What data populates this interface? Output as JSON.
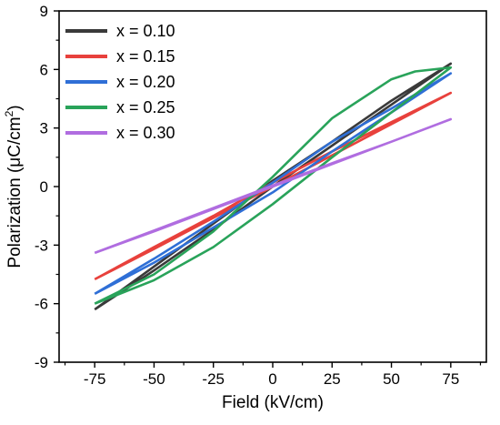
{
  "chart_data": {
    "type": "line",
    "title": "",
    "xlabel": "Field (kV/cm)",
    "ylabel_main": "Polarization (μC/cm",
    "ylabel_sup": "2",
    "ylabel_close": ")",
    "xlim": [
      -90,
      90
    ],
    "ylim": [
      -9,
      9
    ],
    "xticks": [
      -75,
      -50,
      -25,
      0,
      25,
      50,
      75
    ],
    "yticks": [
      -9,
      -6,
      -3,
      0,
      3,
      6,
      9
    ],
    "legend": {
      "position": "top-left"
    },
    "series": [
      {
        "name": "x = 0.10",
        "color": "#3a3a3a",
        "points": [
          [
            -75,
            -6.3
          ],
          [
            -50,
            -4.3
          ],
          [
            -25,
            -2.2
          ],
          [
            0,
            0.0
          ],
          [
            25,
            2.1
          ],
          [
            50,
            4.2
          ],
          [
            75,
            6.3
          ],
          [
            50,
            4.4
          ],
          [
            25,
            2.3
          ],
          [
            0,
            0.3
          ],
          [
            -25,
            -1.9
          ],
          [
            -50,
            -4.1
          ],
          [
            -75,
            -6.3
          ]
        ]
      },
      {
        "name": "x = 0.15",
        "color": "#e8413c",
        "points": [
          [
            -75,
            -4.75
          ],
          [
            -50,
            -3.2
          ],
          [
            -25,
            -1.6
          ],
          [
            0,
            0.0
          ],
          [
            25,
            1.6
          ],
          [
            50,
            3.2
          ],
          [
            75,
            4.8
          ],
          [
            50,
            3.3
          ],
          [
            25,
            1.8
          ],
          [
            0,
            0.2
          ],
          [
            -25,
            -1.5
          ],
          [
            -50,
            -3.1
          ],
          [
            -75,
            -4.75
          ]
        ]
      },
      {
        "name": "x = 0.20",
        "color": "#2f6fd6",
        "points": [
          [
            -75,
            -5.5
          ],
          [
            -50,
            -3.9
          ],
          [
            -25,
            -2.1
          ],
          [
            0,
            -0.3
          ],
          [
            25,
            1.8
          ],
          [
            50,
            3.8
          ],
          [
            75,
            5.8
          ],
          [
            50,
            4.0
          ],
          [
            25,
            2.3
          ],
          [
            0,
            0.2
          ],
          [
            -25,
            -1.8
          ],
          [
            -50,
            -3.7
          ],
          [
            -75,
            -5.5
          ]
        ]
      },
      {
        "name": "x = 0.25",
        "color": "#29a35a",
        "points": [
          [
            -75,
            -6.0
          ],
          [
            -50,
            -4.8
          ],
          [
            -25,
            -3.1
          ],
          [
            0,
            -0.9
          ],
          [
            25,
            1.5
          ],
          [
            50,
            3.8
          ],
          [
            75,
            6.1
          ],
          [
            60,
            5.9
          ],
          [
            50,
            5.5
          ],
          [
            25,
            3.5
          ],
          [
            0,
            0.5
          ],
          [
            -25,
            -2.3
          ],
          [
            -50,
            -4.5
          ],
          [
            -75,
            -6.0
          ]
        ]
      },
      {
        "name": "x = 0.30",
        "color": "#b06de0",
        "points": [
          [
            -75,
            -3.4
          ],
          [
            -50,
            -2.3
          ],
          [
            -25,
            -1.15
          ],
          [
            0,
            0.0
          ],
          [
            25,
            1.15
          ],
          [
            50,
            2.3
          ],
          [
            75,
            3.45
          ],
          [
            50,
            2.3
          ],
          [
            25,
            1.2
          ],
          [
            0,
            0.05
          ],
          [
            -25,
            -1.1
          ],
          [
            -50,
            -2.25
          ],
          [
            -75,
            -3.4
          ]
        ]
      }
    ]
  }
}
